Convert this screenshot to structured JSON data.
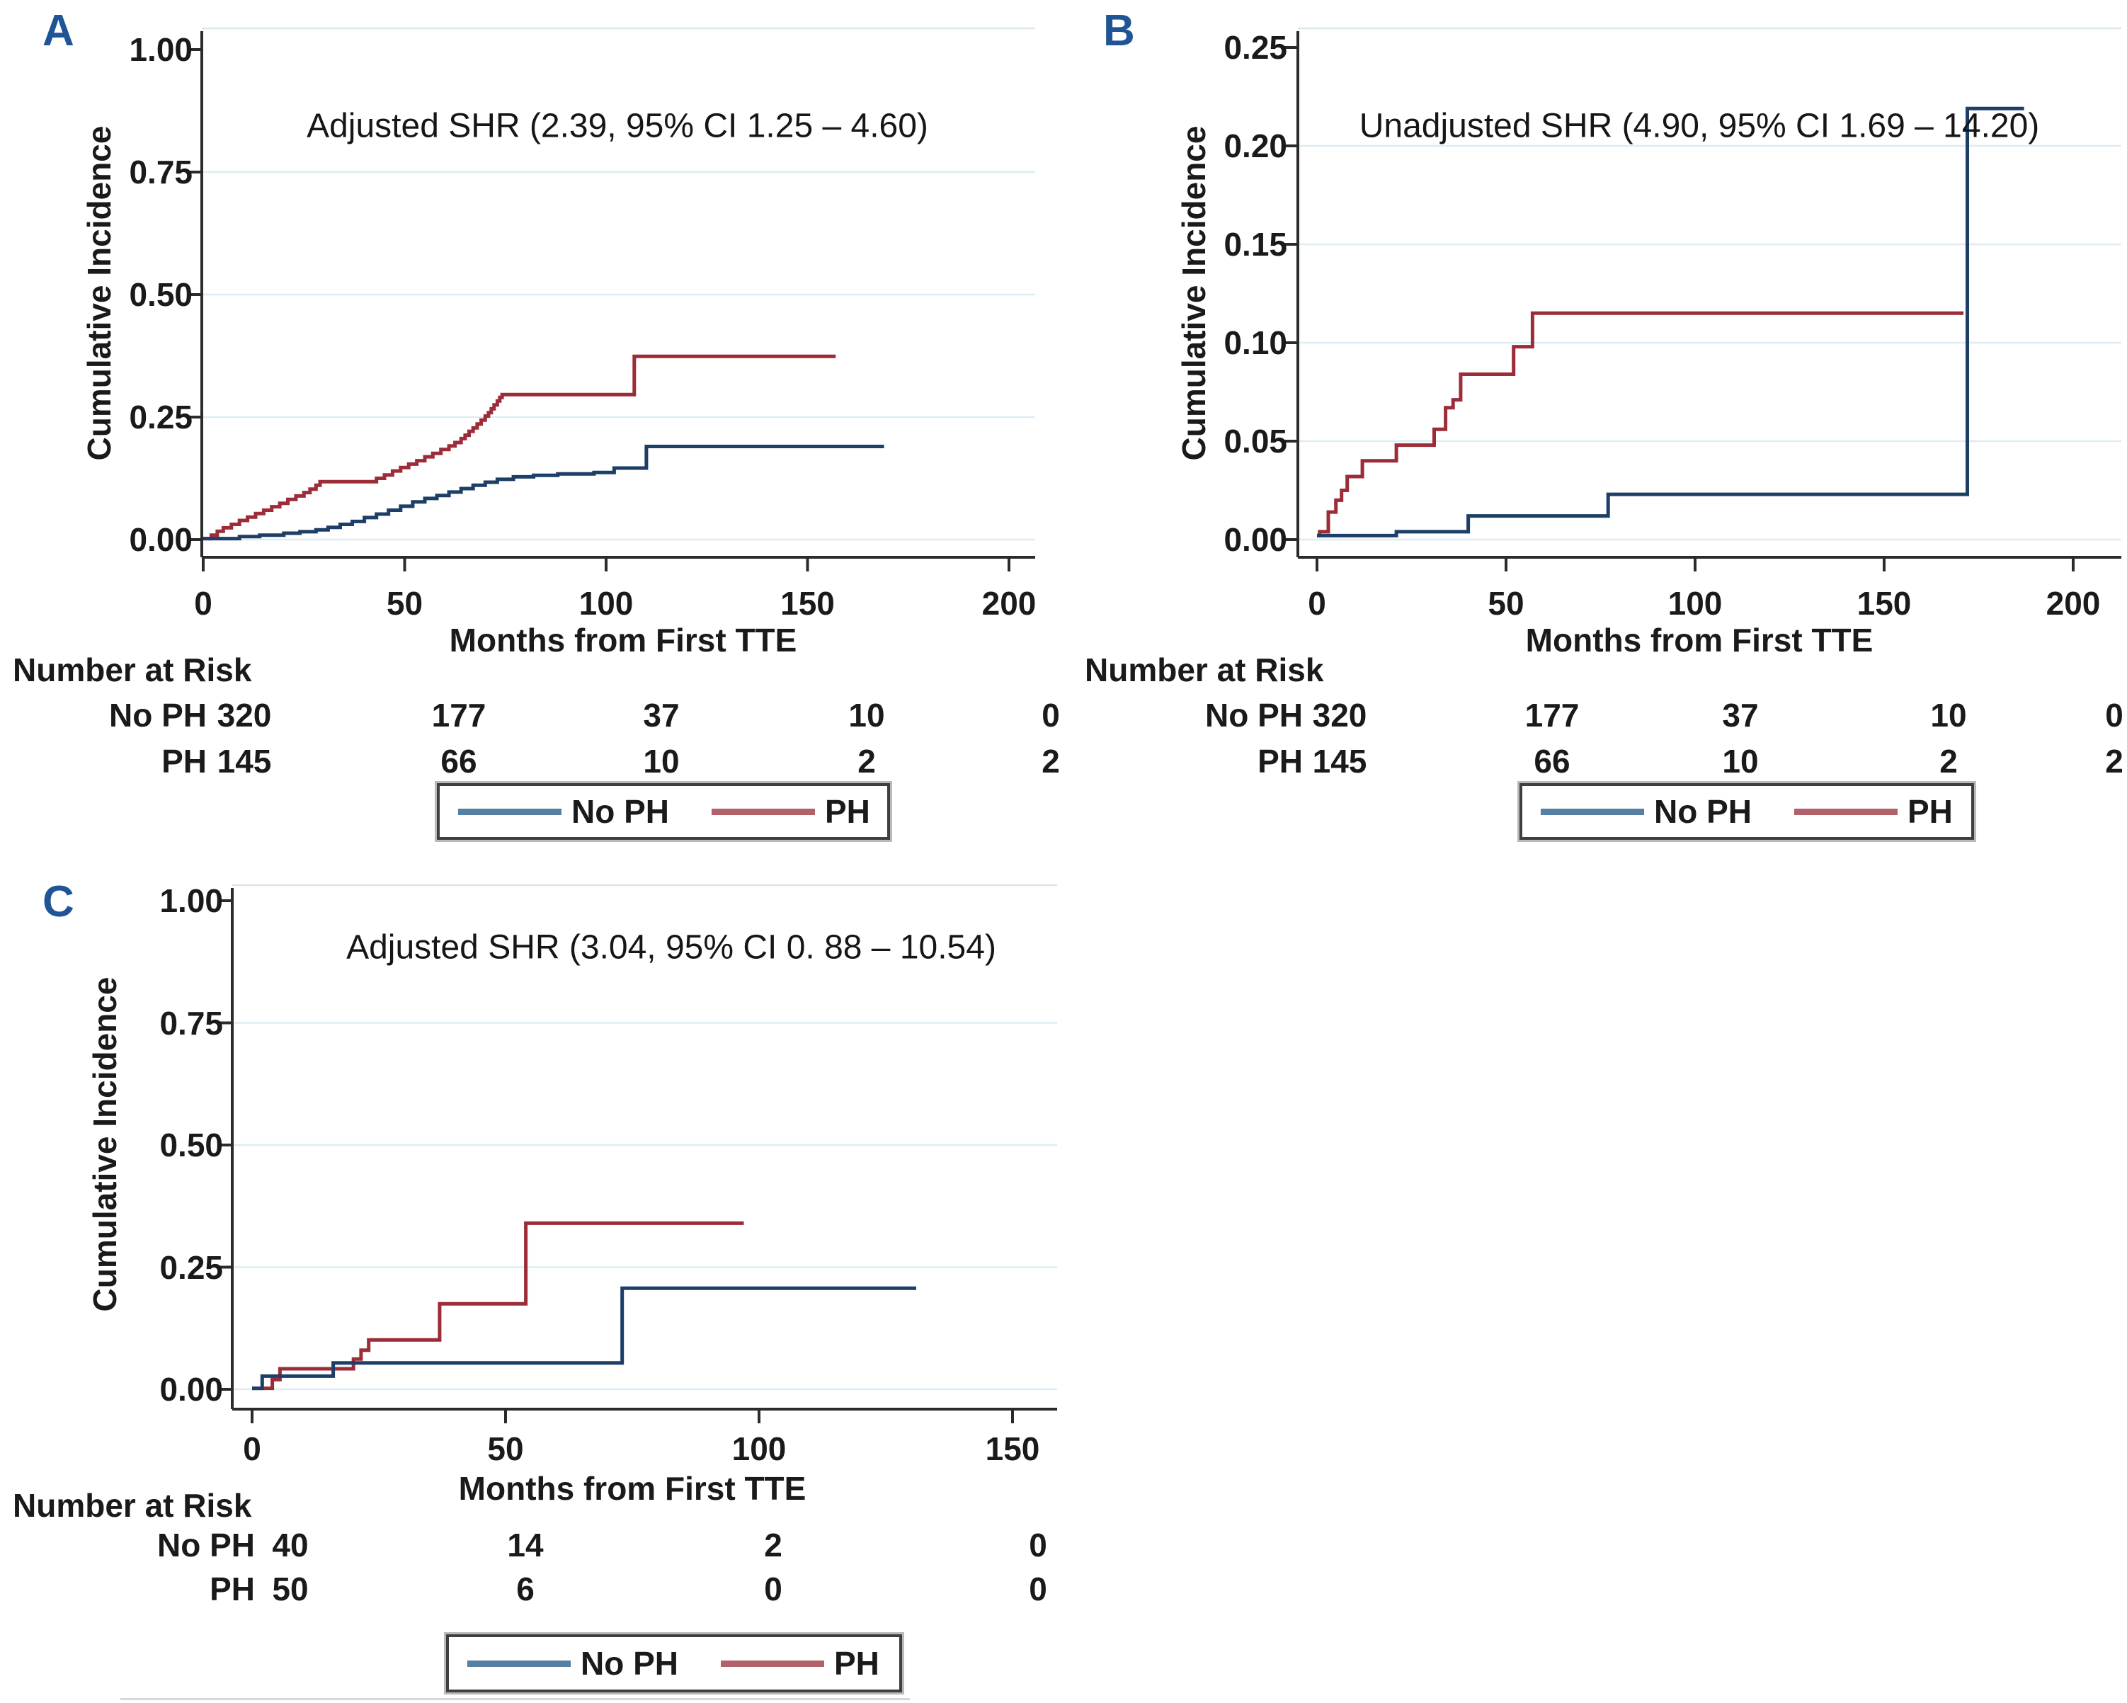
{
  "figure_colors": {
    "no_ph_curve": "#1d3e66",
    "ph_curve": "#9c2d38",
    "no_ph_legend_sample": "#557fa3",
    "ph_legend_sample": "#b2606a",
    "gridline": "#ddedf3",
    "axis": "#2b2b2b",
    "panel_letter": "#1f5496"
  },
  "chart_data": [
    {
      "type": "line",
      "step": true,
      "panel_label": "A",
      "title": "Adjusted SHR (2.39, 95% CI 1.25 – 4.60)",
      "xlabel": "Months from First TTE",
      "ylabel": "Cumulative Incidence",
      "xlim": [
        0,
        200
      ],
      "ylim": [
        0,
        1.0
      ],
      "x_ticks": [
        "0",
        "50",
        "100",
        "150",
        "200"
      ],
      "x_tick_values": [
        0,
        50,
        100,
        150,
        200
      ],
      "y_ticks": [
        "1.00",
        "0.75",
        "0.50",
        "0.25",
        "0.00"
      ],
      "y_tick_values": [
        1.0,
        0.75,
        0.5,
        0.25,
        0.0
      ],
      "grid": true,
      "legend_position": "bottom",
      "legend": [
        {
          "label": "No PH",
          "color": "#557fa3"
        },
        {
          "label": "PH",
          "color": "#b2606a"
        }
      ],
      "risk_table": {
        "header": "Number at Risk",
        "rows": [
          {
            "label": "No PH",
            "counts": [
              "320",
              "177",
              "37",
              "10",
              "0"
            ]
          },
          {
            "label": "PH",
            "counts": [
              "145",
              "66",
              "10",
              "2",
              "2"
            ]
          }
        ]
      },
      "series": [
        {
          "name": "PH",
          "color": "#9c2d38",
          "points": [
            [
              0,
              0.002
            ],
            [
              2,
              0.009
            ],
            [
              3.5,
              0.017
            ],
            [
              5,
              0.024
            ],
            [
              7,
              0.031
            ],
            [
              9,
              0.039
            ],
            [
              11,
              0.046
            ],
            [
              13,
              0.053
            ],
            [
              15,
              0.06
            ],
            [
              17,
              0.067
            ],
            [
              19,
              0.074
            ],
            [
              21,
              0.082
            ],
            [
              23,
              0.089
            ],
            [
              25,
              0.096
            ],
            [
              26.5,
              0.103
            ],
            [
              28,
              0.111
            ],
            [
              29,
              0.118
            ],
            [
              43,
              0.125
            ],
            [
              45,
              0.132
            ],
            [
              47,
              0.14
            ],
            [
              49,
              0.147
            ],
            [
              51,
              0.154
            ],
            [
              53,
              0.161
            ],
            [
              55,
              0.169
            ],
            [
              57,
              0.176
            ],
            [
              59,
              0.184
            ],
            [
              61,
              0.191
            ],
            [
              62.5,
              0.198
            ],
            [
              64,
              0.206
            ],
            [
              65,
              0.213
            ],
            [
              66,
              0.221
            ],
            [
              67,
              0.228
            ],
            [
              68,
              0.236
            ],
            [
              69,
              0.244
            ],
            [
              70,
              0.252
            ],
            [
              70.8,
              0.259
            ],
            [
              71.5,
              0.267
            ],
            [
              72.2,
              0.275
            ],
            [
              73,
              0.283
            ],
            [
              73.6,
              0.29
            ],
            [
              74.2,
              0.296
            ],
            [
              107,
              0.374
            ],
            [
              157,
              0.374
            ]
          ]
        },
        {
          "name": "No PH",
          "color": "#1d3e66",
          "points": [
            [
              0,
              0.002
            ],
            [
              9,
              0.006
            ],
            [
              14,
              0.009
            ],
            [
              20,
              0.013
            ],
            [
              24,
              0.016
            ],
            [
              28,
              0.02
            ],
            [
              31,
              0.025
            ],
            [
              34,
              0.031
            ],
            [
              37,
              0.037
            ],
            [
              40,
              0.045
            ],
            [
              43,
              0.052
            ],
            [
              46,
              0.06
            ],
            [
              49,
              0.068
            ],
            [
              52,
              0.077
            ],
            [
              55,
              0.084
            ],
            [
              58,
              0.09
            ],
            [
              61,
              0.097
            ],
            [
              64,
              0.104
            ],
            [
              67,
              0.111
            ],
            [
              70,
              0.117
            ],
            [
              73,
              0.123
            ],
            [
              77,
              0.128
            ],
            [
              82,
              0.131
            ],
            [
              88,
              0.134
            ],
            [
              97,
              0.137
            ],
            [
              102,
              0.146
            ],
            [
              110,
              0.19
            ],
            [
              169,
              0.19
            ]
          ]
        }
      ]
    },
    {
      "type": "line",
      "step": true,
      "panel_label": "B",
      "title": "Unadjusted SHR (4.90, 95% CI 1.69 – 14.20)",
      "xlabel": "Months from First TTE",
      "ylabel": "Cumulative Incidence",
      "xlim": [
        0,
        200
      ],
      "ylim": [
        0,
        0.25
      ],
      "x_ticks": [
        "0",
        "50",
        "100",
        "150",
        "200"
      ],
      "x_tick_values": [
        0,
        50,
        100,
        150,
        200
      ],
      "y_ticks": [
        "0.25",
        "0.20",
        "0.15",
        "0.10",
        "0.05",
        "0.00"
      ],
      "y_tick_values": [
        0.25,
        0.2,
        0.15,
        0.1,
        0.05,
        0.0
      ],
      "grid": true,
      "legend_position": "bottom",
      "legend": [
        {
          "label": "No PH",
          "color": "#557fa3"
        },
        {
          "label": "PH",
          "color": "#b2606a"
        }
      ],
      "risk_table": {
        "header": "Number at Risk",
        "rows": [
          {
            "label": "No PH",
            "counts": [
              "320",
              "177",
              "37",
              "10",
              "0"
            ]
          },
          {
            "label": "PH",
            "counts": [
              "145",
              "66",
              "10",
              "2",
              "2"
            ]
          }
        ]
      },
      "series": [
        {
          "name": "PH",
          "color": "#9c2d38",
          "points": [
            [
              0,
              0.002
            ],
            [
              0.7,
              0.004
            ],
            [
              3,
              0.014
            ],
            [
              5,
              0.02
            ],
            [
              6.5,
              0.025
            ],
            [
              8,
              0.032
            ],
            [
              12,
              0.04
            ],
            [
              21,
              0.048
            ],
            [
              31,
              0.056
            ],
            [
              34,
              0.067
            ],
            [
              36,
              0.071
            ],
            [
              38,
              0.084
            ],
            [
              52,
              0.098
            ],
            [
              57,
              0.115
            ],
            [
              171,
              0.115
            ]
          ]
        },
        {
          "name": "No PH",
          "color": "#1d3e66",
          "points": [
            [
              0,
              0.002
            ],
            [
              21,
              0.004
            ],
            [
              40,
              0.012
            ],
            [
              77,
              0.023
            ],
            [
              172,
              0.219
            ],
            [
              187,
              0.219
            ]
          ]
        }
      ]
    },
    {
      "type": "line",
      "step": true,
      "panel_label": "C",
      "title": "Adjusted SHR (3.04, 95% CI 0. 88 – 10.54)",
      "xlabel": "Months from First TTE",
      "ylabel": "Cumulative Incidence",
      "xlim": [
        0,
        150
      ],
      "ylim": [
        0,
        1.0
      ],
      "x_ticks": [
        "0",
        "50",
        "100",
        "150"
      ],
      "x_tick_values": [
        0,
        50,
        100,
        150
      ],
      "y_ticks": [
        "1.00",
        "0.75",
        "0.50",
        "0.25",
        "0.00"
      ],
      "y_tick_values": [
        1.0,
        0.75,
        0.5,
        0.25,
        0.0
      ],
      "grid": true,
      "legend_position": "bottom",
      "legend": [
        {
          "label": "No PH",
          "color": "#557fa3"
        },
        {
          "label": "PH",
          "color": "#b2606a"
        }
      ],
      "risk_table": {
        "header": "Number at Risk",
        "rows": [
          {
            "label": "No PH",
            "counts": [
              "40",
              "14",
              "2",
              "0"
            ]
          },
          {
            "label": "PH",
            "counts": [
              "50",
              "6",
              "0",
              "0"
            ]
          }
        ]
      },
      "series": [
        {
          "name": "PH",
          "color": "#9c2d38",
          "points": [
            [
              0,
              0.002
            ],
            [
              4,
              0.02
            ],
            [
              5.5,
              0.042
            ],
            [
              20,
              0.062
            ],
            [
              21.5,
              0.08
            ],
            [
              23,
              0.101
            ],
            [
              37,
              0.175
            ],
            [
              54,
              0.34
            ],
            [
              97,
              0.34
            ]
          ]
        },
        {
          "name": "No PH",
          "color": "#1d3e66",
          "points": [
            [
              0,
              0.002
            ],
            [
              2,
              0.027
            ],
            [
              16,
              0.054
            ],
            [
              73,
              0.207
            ],
            [
              131,
              0.207
            ]
          ]
        }
      ]
    }
  ]
}
